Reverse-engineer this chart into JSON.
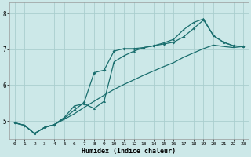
{
  "xlabel": "Humidex (Indice chaleur)",
  "bg_color": "#cce8e8",
  "grid_color": "#aacece",
  "line_color": "#1a6e6e",
  "xlim": [
    -0.5,
    23.5
  ],
  "ylim": [
    4.5,
    8.3
  ],
  "yticks": [
    5,
    6,
    7,
    8
  ],
  "xticks": [
    0,
    1,
    2,
    3,
    4,
    5,
    6,
    7,
    8,
    9,
    10,
    11,
    12,
    13,
    14,
    15,
    16,
    17,
    18,
    19,
    20,
    21,
    22,
    23
  ],
  "line1_x": [
    0,
    1,
    2,
    3,
    4,
    5,
    6,
    7,
    8,
    9,
    10,
    11,
    12,
    13,
    14,
    15,
    16,
    17,
    18,
    19,
    20,
    21,
    22,
    23
  ],
  "line1_y": [
    4.95,
    4.88,
    4.65,
    4.82,
    4.9,
    5.05,
    5.2,
    5.38,
    5.55,
    5.72,
    5.88,
    6.02,
    6.15,
    6.28,
    6.4,
    6.52,
    6.63,
    6.78,
    6.9,
    7.02,
    7.12,
    7.08,
    7.05,
    7.08
  ],
  "line2_x": [
    0,
    1,
    2,
    3,
    4,
    5,
    6,
    7,
    8,
    9,
    10,
    11,
    12,
    13,
    14,
    15,
    16,
    17,
    18,
    19,
    20,
    21,
    22,
    23
  ],
  "line2_y": [
    4.95,
    4.88,
    4.65,
    4.82,
    4.9,
    5.08,
    5.3,
    5.52,
    6.35,
    6.42,
    6.95,
    7.02,
    7.02,
    7.05,
    7.1,
    7.15,
    7.2,
    7.35,
    7.58,
    7.82,
    7.38,
    7.2,
    7.1,
    7.08
  ],
  "line3_x": [
    0,
    1,
    2,
    3,
    4,
    5,
    6,
    7,
    8,
    9,
    10,
    11,
    12,
    13,
    14,
    15,
    16,
    17,
    18,
    19,
    20,
    21,
    22,
    23
  ],
  "line3_y": [
    4.95,
    4.88,
    4.65,
    4.82,
    4.9,
    5.1,
    5.42,
    5.48,
    5.35,
    5.55,
    6.65,
    6.82,
    6.95,
    7.05,
    7.1,
    7.18,
    7.28,
    7.55,
    7.75,
    7.85,
    7.38,
    7.2,
    7.1,
    7.08
  ]
}
